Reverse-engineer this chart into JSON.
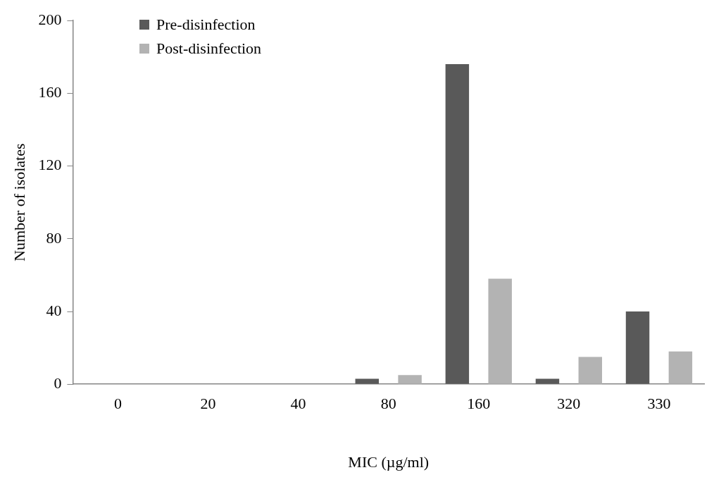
{
  "chart_data": {
    "type": "bar",
    "xlabel": "MIC (µg/ml)",
    "ylabel": "Number of isolates",
    "categories": [
      "0",
      "20",
      "40",
      "80",
      "160",
      "320",
      "330"
    ],
    "series": [
      {
        "name": "Pre-disinfection",
        "color": "#595959",
        "values": [
          0,
          0,
          0,
          3,
          176,
          3,
          40
        ]
      },
      {
        "name": "Post-disinfection",
        "color": "#b3b3b3",
        "values": [
          0,
          0,
          0,
          5,
          58,
          15,
          18
        ]
      }
    ],
    "ylim": [
      0,
      200
    ],
    "yticks": [
      0,
      40,
      80,
      120,
      160,
      200
    ],
    "grid": false,
    "legend": "top left"
  }
}
